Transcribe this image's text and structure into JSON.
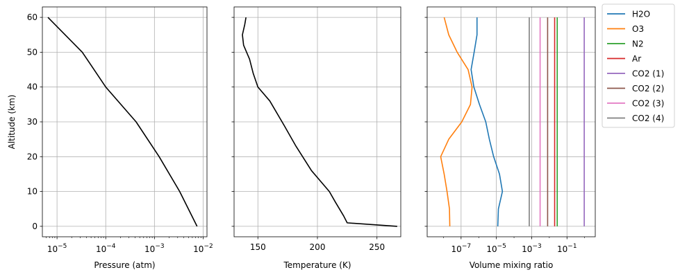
{
  "chart_data": [
    {
      "type": "line",
      "xlabel": "Pressure (atm)",
      "ylabel": "Altitude (km)",
      "xscale": "log",
      "xlim": [
        5e-06,
        0.012
      ],
      "ylim": [
        -3,
        63
      ],
      "xticks": [
        {
          "value": 1e-05,
          "base": "10",
          "exp": "−5"
        },
        {
          "value": 0.0001,
          "base": "10",
          "exp": "−4"
        },
        {
          "value": 0.001,
          "base": "10",
          "exp": "−3"
        },
        {
          "value": 0.01,
          "base": "10",
          "exp": "−2"
        }
      ],
      "yticks": [
        "0",
        "10",
        "20",
        "30",
        "40",
        "50",
        "60"
      ],
      "grid": true,
      "series": [
        {
          "color": "#000000",
          "points": [
            [
              0.0075,
              0
            ],
            [
              0.0033,
              10
            ],
            [
              0.00125,
              20
            ],
            [
              0.00042,
              30
            ],
            [
              0.0001,
              40
            ],
            [
              3.3e-05,
              50
            ],
            [
              6.5e-06,
              60
            ]
          ]
        }
      ]
    },
    {
      "type": "line",
      "xlabel": "Temperature (K)",
      "xlim": [
        130,
        270
      ],
      "ylim": [
        -3,
        63
      ],
      "xticks": [
        "150",
        "200",
        "250"
      ],
      "yticks_labels_hidden": true,
      "grid": true,
      "series": [
        {
          "color": "#000000",
          "points": [
            [
              267,
              0
            ],
            [
              225,
              1
            ],
            [
              222,
              3
            ],
            [
              215,
              7
            ],
            [
              210,
              10
            ],
            [
              195,
              16
            ],
            [
              182,
              23
            ],
            [
              172,
              29
            ],
            [
              160,
              36
            ],
            [
              150,
              40
            ],
            [
              146,
              44
            ],
            [
              143,
              48
            ],
            [
              138,
              52
            ],
            [
              137,
              55
            ],
            [
              139,
              58
            ],
            [
              140,
              60
            ]
          ]
        }
      ]
    },
    {
      "type": "line",
      "xlabel": "Volume mixing ratio",
      "xscale": "log",
      "xlim": [
        1.2e-09,
        4
      ],
      "ylim": [
        -3,
        63
      ],
      "xticks": [
        {
          "value": 1e-07,
          "base": "10",
          "exp": "−7"
        },
        {
          "value": 1e-05,
          "base": "10",
          "exp": "−5"
        },
        {
          "value": 0.001,
          "base": "10",
          "exp": "−3"
        },
        {
          "value": 0.1,
          "base": "10",
          "exp": "−1"
        }
      ],
      "yticks_labels_hidden": true,
      "grid": true,
      "legend_position": "outside-upper-right",
      "series": [
        {
          "name": "H2O",
          "color": "#1f77b4",
          "points": [
            [
              1.2e-05,
              0
            ],
            [
              1.3e-05,
              5
            ],
            [
              2.2e-05,
              10
            ],
            [
              1.5e-05,
              15
            ],
            [
              7e-06,
              20
            ],
            [
              4e-06,
              25
            ],
            [
              2.5e-06,
              30
            ],
            [
              1.1e-06,
              35
            ],
            [
              5.3e-07,
              40
            ],
            [
              3.7e-07,
              45
            ],
            [
              5.5e-07,
              50
            ],
            [
              8e-07,
              55
            ],
            [
              8e-07,
              60
            ]
          ]
        },
        {
          "name": "O3",
          "color": "#ff7f0e",
          "points": [
            [
              2.3e-08,
              0
            ],
            [
              2.2e-08,
              5
            ],
            [
              1.6e-08,
              10
            ],
            [
              1.1e-08,
              15
            ],
            [
              7e-09,
              20
            ],
            [
              2e-08,
              25
            ],
            [
              1.1e-07,
              30
            ],
            [
              3.4e-07,
              35
            ],
            [
              4.2e-07,
              40
            ],
            [
              2.5e-07,
              45
            ],
            [
              6e-08,
              50
            ],
            [
              2e-08,
              55
            ],
            [
              1.1e-08,
              60
            ]
          ]
        },
        {
          "name": "N2",
          "color": "#2ca02c",
          "points": [
            [
              0.028,
              0
            ],
            [
              0.028,
              60
            ]
          ]
        },
        {
          "name": "Ar",
          "color": "#d62728",
          "points": [
            [
              0.02,
              0
            ],
            [
              0.02,
              60
            ]
          ]
        },
        {
          "name": "CO2 (1)",
          "color": "#9467bd",
          "points": [
            [
              0.95,
              0
            ],
            [
              0.95,
              60
            ]
          ]
        },
        {
          "name": "CO2 (2)",
          "color": "#8c564b",
          "points": [
            [
              0.008,
              0
            ],
            [
              0.008,
              60
            ]
          ]
        },
        {
          "name": "CO2 (3)",
          "color": "#e377c2",
          "points": [
            [
              0.003,
              0
            ],
            [
              0.003,
              60
            ]
          ]
        },
        {
          "name": "CO2 (4)",
          "color": "#7f7f7f",
          "points": [
            [
              0.00073,
              0
            ],
            [
              0.00073,
              60
            ]
          ]
        }
      ]
    }
  ]
}
